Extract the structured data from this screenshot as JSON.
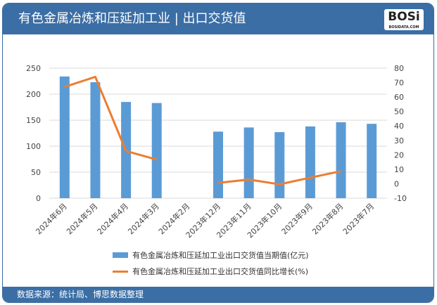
{
  "header": {
    "title": "有色金属冶炼和压延加工业 | 出口交货值",
    "logo": "BOSi",
    "logo_sub": "BOSIDATA.COM"
  },
  "footer": {
    "source": "数据来源：统计局、博思数据整理"
  },
  "chart_data": {
    "type": "bar+line",
    "categories": [
      "2024年6月",
      "2024年5月",
      "2024年4月",
      "2024年3月",
      "2024年2月",
      "2023年12月",
      "2023年11月",
      "2023年10月",
      "2023年9月",
      "2023年8月",
      "2023年7月"
    ],
    "series": [
      {
        "name": "有色金属冶炼和压延加工业出口交货值当期值(亿元)",
        "type": "bar",
        "axis": "left",
        "color": "#5b9bd5",
        "values": [
          234,
          223,
          185,
          183,
          null,
          128,
          136,
          127,
          138,
          146,
          143
        ]
      },
      {
        "name": "有色金属冶炼和压延加工业出口交货值同比增长(%)",
        "type": "line",
        "axis": "right",
        "color": "#ed7d31",
        "values": [
          67,
          74,
          22.6,
          16.7,
          null,
          0.6,
          2.9,
          -0.4,
          4.2,
          8.7,
          null
        ]
      }
    ],
    "left_axis": {
      "range": [
        0,
        250
      ],
      "ticks": [
        0,
        50,
        100,
        150,
        200,
        250
      ]
    },
    "right_axis": {
      "range": [
        -10,
        80
      ],
      "ticks": [
        -10,
        0,
        10,
        20,
        30,
        40,
        50,
        60,
        70,
        80
      ]
    },
    "grid": true,
    "legend_placement": "bottom"
  }
}
